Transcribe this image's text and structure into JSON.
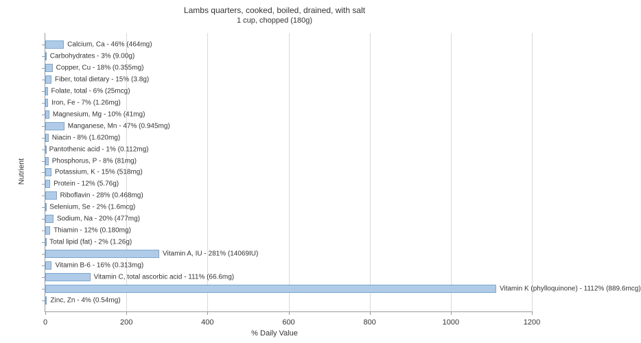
{
  "chart": {
    "type": "bar-horizontal",
    "title": "Lambs quarters, cooked, boiled, drained, with salt",
    "subtitle": "1 cup, chopped (180g)",
    "x_axis_label": "% Daily Value",
    "y_axis_label": "Nutrient",
    "xlim": [
      0,
      1200
    ],
    "xtick_step": 200,
    "xticks": [
      0,
      200,
      400,
      600,
      800,
      1000,
      1200
    ],
    "background_color": "#ffffff",
    "grid_color": "#d9d9d9",
    "bar_color": "#b0cbe8",
    "bar_border_color": "#7ba7d0",
    "label_fontsize": 10,
    "tick_fontsize": 11,
    "title_fontsize": 12,
    "rows": [
      {
        "label": "Calcium, Ca - 46% (464mg)",
        "value": 46
      },
      {
        "label": "Carbohydrates - 3% (9.00g)",
        "value": 3
      },
      {
        "label": "Copper, Cu - 18% (0.355mg)",
        "value": 18
      },
      {
        "label": "Fiber, total dietary - 15% (3.8g)",
        "value": 15
      },
      {
        "label": "Folate, total - 6% (25mcg)",
        "value": 6
      },
      {
        "label": "Iron, Fe - 7% (1.26mg)",
        "value": 7
      },
      {
        "label": "Magnesium, Mg - 10% (41mg)",
        "value": 10
      },
      {
        "label": "Manganese, Mn - 47% (0.945mg)",
        "value": 47
      },
      {
        "label": "Niacin - 8% (1.620mg)",
        "value": 8
      },
      {
        "label": "Pantothenic acid - 1% (0.112mg)",
        "value": 1
      },
      {
        "label": "Phosphorus, P - 8% (81mg)",
        "value": 8
      },
      {
        "label": "Potassium, K - 15% (518mg)",
        "value": 15
      },
      {
        "label": "Protein - 12% (5.76g)",
        "value": 12
      },
      {
        "label": "Riboflavin - 28% (0.468mg)",
        "value": 28
      },
      {
        "label": "Selenium, Se - 2% (1.6mcg)",
        "value": 2
      },
      {
        "label": "Sodium, Na - 20% (477mg)",
        "value": 20
      },
      {
        "label": "Thiamin - 12% (0.180mg)",
        "value": 12
      },
      {
        "label": "Total lipid (fat) - 2% (1.26g)",
        "value": 2
      },
      {
        "label": "Vitamin A, IU - 281% (14069IU)",
        "value": 281
      },
      {
        "label": "Vitamin B-6 - 16% (0.313mg)",
        "value": 16
      },
      {
        "label": "Vitamin C, total ascorbic acid - 111% (66.6mg)",
        "value": 111
      },
      {
        "label": "Vitamin K (phylloquinone) - 1112% (889.6mcg)",
        "value": 1112
      },
      {
        "label": "Zinc, Zn - 4% (0.54mg)",
        "value": 4
      }
    ]
  }
}
